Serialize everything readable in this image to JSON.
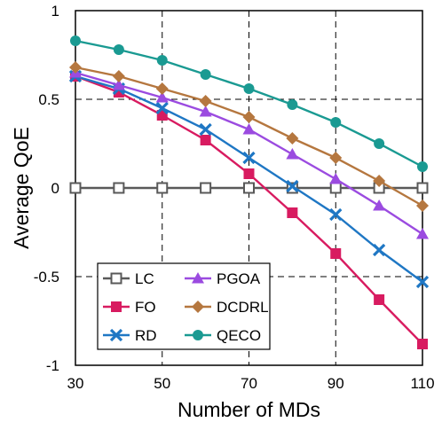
{
  "chart_data": {
    "type": "line",
    "title": "",
    "xlabel": "Number of MDs",
    "ylabel": "Average QoE",
    "xlim": [
      30,
      110
    ],
    "ylim": [
      -1,
      1
    ],
    "x_ticks": [
      30,
      50,
      70,
      90,
      110
    ],
    "x_tick_labels": [
      "30",
      "50",
      "70",
      "90",
      "110"
    ],
    "y_ticks": [
      1,
      0.5,
      0,
      -0.5,
      -1
    ],
    "y_tick_labels": [
      "1",
      "0.5",
      "0",
      "-0.5",
      "-1"
    ],
    "grid": "dashed at major ticks",
    "legend_position": "lower-left, two columns",
    "x": [
      30,
      40,
      50,
      60,
      70,
      80,
      90,
      100,
      110
    ],
    "series": [
      {
        "name": "LC",
        "color": "#595959",
        "marker": "open-square",
        "values": [
          0,
          0,
          0,
          0,
          0,
          0,
          0,
          0,
          0
        ]
      },
      {
        "name": "FO",
        "color": "#d81b60",
        "marker": "filled-square",
        "values": [
          0.63,
          0.54,
          0.41,
          0.27,
          0.08,
          -0.14,
          -0.37,
          -0.63,
          -0.88
        ]
      },
      {
        "name": "RD",
        "color": "#1f77c4",
        "marker": "x",
        "values": [
          0.63,
          0.56,
          0.45,
          0.33,
          0.17,
          0.01,
          -0.15,
          -0.35,
          -0.53
        ]
      },
      {
        "name": "PGOA",
        "color": "#9b4be0",
        "marker": "triangle",
        "values": [
          0.65,
          0.58,
          0.51,
          0.43,
          0.33,
          0.19,
          0.05,
          -0.1,
          -0.26
        ]
      },
      {
        "name": "DCDRL",
        "color": "#b5773f",
        "marker": "diamond",
        "values": [
          0.68,
          0.63,
          0.56,
          0.49,
          0.4,
          0.28,
          0.17,
          0.04,
          -0.1
        ]
      },
      {
        "name": "QECO",
        "color": "#1a9a92",
        "marker": "circle",
        "values": [
          0.83,
          0.78,
          0.72,
          0.64,
          0.56,
          0.47,
          0.37,
          0.25,
          0.12
        ]
      }
    ]
  }
}
